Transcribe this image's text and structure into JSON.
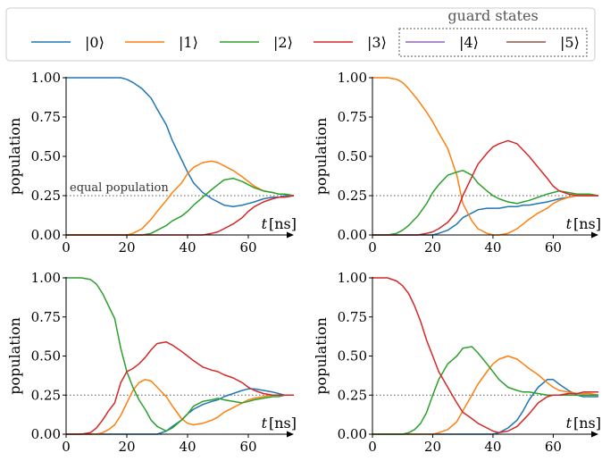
{
  "colors": {
    "s0": "#1f77b4",
    "s1": "#ff7f0e",
    "s2": "#2ca02c",
    "s3": "#d62728",
    "s4": "#9467bd",
    "s5": "#8c564b"
  },
  "legend": {
    "items": [
      "|0⟩",
      "|1⟩",
      "|2⟩",
      "|3⟩",
      "|4⟩",
      "|5⟩"
    ],
    "group_title": "guard states"
  },
  "chart_data": [
    {
      "type": "line",
      "ylabel": "population",
      "xaxis_label_t": "t",
      "xaxis_label_unit": "[ns]",
      "x_ticks": [
        "0",
        "20",
        "40",
        "60"
      ],
      "y_ticks": [
        "0.00",
        "0.25",
        "0.50",
        "0.75",
        "1.00"
      ],
      "xlim": [
        0,
        75
      ],
      "ylim": [
        0,
        1
      ],
      "hline": 0.25,
      "annotation": "equal population",
      "x": [
        0,
        10,
        18,
        20,
        22,
        25,
        28,
        30,
        33,
        35,
        38,
        40,
        42,
        45,
        48,
        50,
        52,
        55,
        58,
        60,
        62,
        65,
        68,
        70,
        72,
        75
      ],
      "series": [
        {
          "name": "|0⟩",
          "values": [
            1,
            1,
            1,
            0.99,
            0.97,
            0.93,
            0.87,
            0.8,
            0.7,
            0.6,
            0.48,
            0.4,
            0.33,
            0.27,
            0.23,
            0.21,
            0.19,
            0.18,
            0.19,
            0.2,
            0.21,
            0.23,
            0.24,
            0.24,
            0.25,
            0.25
          ]
        },
        {
          "name": "|1⟩",
          "values": [
            0,
            0,
            0,
            0,
            0.01,
            0.04,
            0.1,
            0.15,
            0.22,
            0.27,
            0.33,
            0.39,
            0.43,
            0.46,
            0.47,
            0.46,
            0.44,
            0.41,
            0.37,
            0.34,
            0.31,
            0.28,
            0.27,
            0.26,
            0.26,
            0.25
          ]
        },
        {
          "name": "|2⟩",
          "values": [
            0,
            0,
            0,
            0,
            0,
            0,
            0.01,
            0.03,
            0.06,
            0.09,
            0.12,
            0.15,
            0.19,
            0.24,
            0.29,
            0.32,
            0.35,
            0.36,
            0.34,
            0.32,
            0.3,
            0.28,
            0.27,
            0.26,
            0.26,
            0.25
          ]
        },
        {
          "name": "|3⟩",
          "values": [
            0,
            0,
            0,
            0,
            0,
            0,
            0,
            0,
            0,
            0,
            0,
            0,
            0,
            0,
            0.01,
            0.02,
            0.04,
            0.07,
            0.11,
            0.15,
            0.18,
            0.21,
            0.23,
            0.24,
            0.24,
            0.25
          ]
        }
      ]
    },
    {
      "type": "line",
      "ylabel": "population",
      "xaxis_label_t": "t",
      "xaxis_label_unit": "[ns]",
      "x_ticks": [
        "0",
        "20",
        "40",
        "60"
      ],
      "y_ticks": [
        "0.00",
        "0.25",
        "0.50",
        "0.75",
        "1.00"
      ],
      "xlim": [
        0,
        75
      ],
      "ylim": [
        0,
        1
      ],
      "hline": 0.25,
      "x": [
        0,
        5,
        8,
        10,
        12,
        15,
        18,
        20,
        22,
        25,
        28,
        30,
        33,
        35,
        38,
        40,
        42,
        45,
        48,
        50,
        52,
        55,
        58,
        60,
        62,
        65,
        68,
        70,
        72,
        75
      ],
      "series": [
        {
          "name": "|0⟩",
          "values": [
            0,
            0,
            0,
            0,
            0,
            0,
            0,
            0,
            0.01,
            0.03,
            0.07,
            0.11,
            0.14,
            0.16,
            0.17,
            0.17,
            0.17,
            0.18,
            0.18,
            0.19,
            0.19,
            0.2,
            0.21,
            0.22,
            0.23,
            0.24,
            0.25,
            0.25,
            0.25,
            0.25
          ]
        },
        {
          "name": "|1⟩",
          "values": [
            1,
            1,
            0.99,
            0.97,
            0.93,
            0.86,
            0.78,
            0.72,
            0.65,
            0.55,
            0.38,
            0.2,
            0.09,
            0.04,
            0.01,
            0,
            0,
            0.01,
            0.04,
            0.07,
            0.1,
            0.14,
            0.17,
            0.2,
            0.22,
            0.24,
            0.25,
            0.25,
            0.25,
            0.25
          ]
        },
        {
          "name": "|2⟩",
          "values": [
            0,
            0,
            0.01,
            0.03,
            0.06,
            0.12,
            0.2,
            0.27,
            0.32,
            0.38,
            0.4,
            0.41,
            0.38,
            0.33,
            0.28,
            0.25,
            0.23,
            0.21,
            0.2,
            0.21,
            0.22,
            0.24,
            0.26,
            0.27,
            0.28,
            0.27,
            0.26,
            0.26,
            0.26,
            0.25
          ]
        },
        {
          "name": "|3⟩",
          "values": [
            0,
            0,
            0,
            0,
            0,
            0,
            0.01,
            0.02,
            0.04,
            0.08,
            0.15,
            0.25,
            0.37,
            0.45,
            0.52,
            0.56,
            0.58,
            0.6,
            0.58,
            0.54,
            0.5,
            0.43,
            0.36,
            0.31,
            0.28,
            0.26,
            0.25,
            0.25,
            0.25,
            0.25
          ]
        }
      ]
    },
    {
      "type": "line",
      "ylabel": "population",
      "xaxis_label_t": "t",
      "xaxis_label_unit": "[ns]",
      "x_ticks": [
        "0",
        "20",
        "40",
        "60"
      ],
      "y_ticks": [
        "0.00",
        "0.25",
        "0.50",
        "0.75",
        "1.00"
      ],
      "xlim": [
        0,
        75
      ],
      "ylim": [
        0,
        1
      ],
      "hline": 0.25,
      "x": [
        0,
        5,
        8,
        10,
        12,
        14,
        16,
        18,
        20,
        22,
        24,
        26,
        28,
        30,
        33,
        35,
        38,
        40,
        42,
        45,
        48,
        50,
        52,
        55,
        58,
        60,
        62,
        65,
        68,
        70,
        72,
        75
      ],
      "series": [
        {
          "name": "|0⟩",
          "values": [
            0,
            0,
            0,
            0,
            0,
            0,
            0,
            0,
            0,
            0,
            0,
            0,
            0,
            0,
            0.02,
            0.05,
            0.09,
            0.13,
            0.16,
            0.19,
            0.21,
            0.22,
            0.24,
            0.26,
            0.28,
            0.29,
            0.29,
            0.28,
            0.27,
            0.26,
            0.25,
            0.25
          ]
        },
        {
          "name": "|1⟩",
          "values": [
            0,
            0,
            0,
            0,
            0.01,
            0.03,
            0.06,
            0.12,
            0.2,
            0.28,
            0.33,
            0.35,
            0.34,
            0.3,
            0.24,
            0.18,
            0.1,
            0.07,
            0.06,
            0.07,
            0.09,
            0.11,
            0.14,
            0.17,
            0.2,
            0.22,
            0.23,
            0.24,
            0.25,
            0.25,
            0.25,
            0.25
          ]
        },
        {
          "name": "|2⟩",
          "values": [
            1,
            1,
            0.99,
            0.96,
            0.9,
            0.82,
            0.74,
            0.55,
            0.4,
            0.3,
            0.22,
            0.16,
            0.09,
            0.05,
            0.02,
            0.04,
            0.09,
            0.13,
            0.18,
            0.21,
            0.22,
            0.23,
            0.22,
            0.21,
            0.2,
            0.21,
            0.22,
            0.23,
            0.24,
            0.24,
            0.25,
            0.25
          ]
        },
        {
          "name": "|3⟩",
          "values": [
            0,
            0,
            0.01,
            0.04,
            0.09,
            0.15,
            0.2,
            0.33,
            0.4,
            0.42,
            0.45,
            0.49,
            0.54,
            0.58,
            0.59,
            0.57,
            0.53,
            0.5,
            0.47,
            0.43,
            0.41,
            0.4,
            0.38,
            0.36,
            0.33,
            0.3,
            0.28,
            0.26,
            0.25,
            0.25,
            0.25,
            0.25
          ]
        }
      ]
    },
    {
      "type": "line",
      "ylabel": "population",
      "xaxis_label_t": "t",
      "xaxis_label_unit": "[ns]",
      "x_ticks": [
        "0",
        "20",
        "40",
        "60"
      ],
      "y_ticks": [
        "0.00",
        "0.25",
        "0.50",
        "0.75",
        "1.00"
      ],
      "xlim": [
        0,
        75
      ],
      "ylim": [
        0,
        1
      ],
      "hline": 0.25,
      "x": [
        0,
        5,
        8,
        10,
        12,
        14,
        16,
        18,
        20,
        22,
        25,
        28,
        30,
        33,
        35,
        38,
        40,
        42,
        45,
        48,
        50,
        52,
        55,
        58,
        60,
        62,
        65,
        68,
        70,
        72,
        75
      ],
      "series": [
        {
          "name": "|0⟩",
          "values": [
            0,
            0,
            0,
            0,
            0,
            0,
            0,
            0,
            0,
            0,
            0,
            0,
            0,
            0,
            0,
            0,
            0,
            0.01,
            0.04,
            0.09,
            0.15,
            0.22,
            0.3,
            0.35,
            0.35,
            0.32,
            0.28,
            0.25,
            0.24,
            0.24,
            0.24
          ]
        },
        {
          "name": "|1⟩",
          "values": [
            0,
            0,
            0,
            0,
            0,
            0,
            0,
            0,
            0,
            0.01,
            0.03,
            0.08,
            0.15,
            0.25,
            0.32,
            0.4,
            0.45,
            0.48,
            0.5,
            0.48,
            0.45,
            0.42,
            0.38,
            0.33,
            0.3,
            0.28,
            0.27,
            0.26,
            0.26,
            0.26,
            0.25
          ]
        },
        {
          "name": "|2⟩",
          "values": [
            0,
            0,
            0,
            0,
            0.01,
            0.03,
            0.07,
            0.14,
            0.25,
            0.35,
            0.45,
            0.5,
            0.55,
            0.56,
            0.52,
            0.45,
            0.4,
            0.35,
            0.3,
            0.28,
            0.27,
            0.27,
            0.26,
            0.25,
            0.25,
            0.25,
            0.25,
            0.25,
            0.25,
            0.25,
            0.25
          ]
        },
        {
          "name": "|3⟩",
          "values": [
            1,
            1,
            0.98,
            0.95,
            0.9,
            0.82,
            0.72,
            0.6,
            0.5,
            0.4,
            0.3,
            0.2,
            0.14,
            0.1,
            0.07,
            0.04,
            0.02,
            0.01,
            0.02,
            0.05,
            0.09,
            0.13,
            0.2,
            0.24,
            0.25,
            0.25,
            0.26,
            0.26,
            0.27,
            0.27,
            0.27
          ]
        }
      ]
    }
  ]
}
